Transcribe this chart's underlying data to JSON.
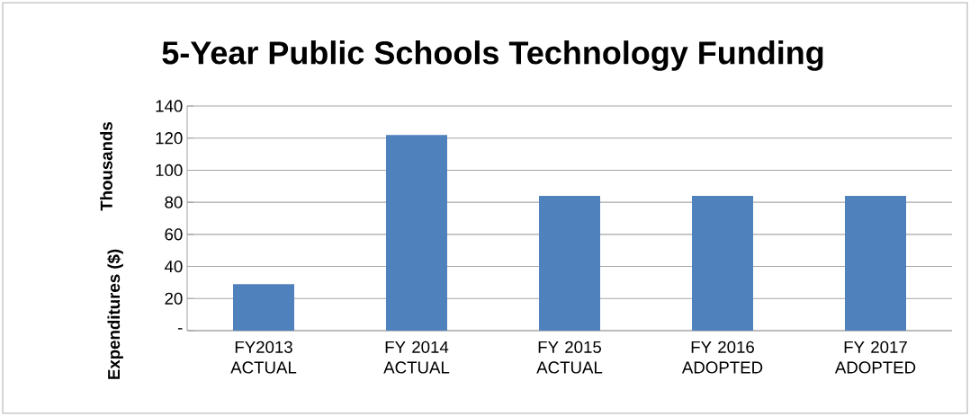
{
  "chart_data": {
    "type": "bar",
    "title": "5-Year Public Schools Technology Funding",
    "ylabel": "Expenditures ($)",
    "annotations": [
      "Thousands"
    ],
    "categories": [
      "FY2013 ACTUAL",
      "FY 2014 ACTUAL",
      "FY 2015 ACTUAL",
      "FY 2016 ADOPTED",
      "FY 2017 ADOPTED"
    ],
    "values": [
      29,
      122,
      84,
      84,
      84
    ],
    "color": "#4f81bd",
    "ylim": [
      0,
      140
    ],
    "yticks": [
      {
        "value": 0,
        "label": "-"
      },
      20,
      40,
      60,
      80,
      100,
      120,
      140
    ],
    "grid": "y"
  }
}
